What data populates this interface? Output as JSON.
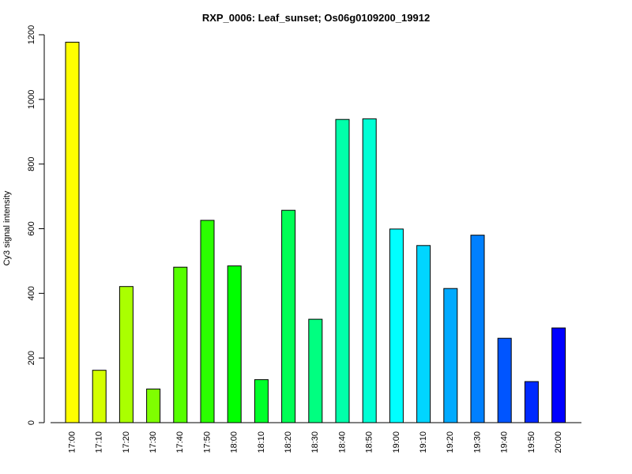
{
  "chart_data": {
    "type": "bar",
    "title": "RXP_0006: Leaf_sunset; Os06g0109200_19912",
    "xlabel": "",
    "ylabel": "Cy3 signal intensity",
    "ylim": [
      0,
      1200
    ],
    "yticks": [
      0,
      200,
      400,
      600,
      800,
      1000,
      1200
    ],
    "grid": false,
    "categories": [
      "17:00",
      "17:10",
      "17:20",
      "17:30",
      "17:40",
      "17:50",
      "18:00",
      "18:10",
      "18:20",
      "18:30",
      "18:40",
      "18:50",
      "19:00",
      "19:10",
      "19:20",
      "19:30",
      "19:40",
      "19:50",
      "20:00"
    ],
    "values": [
      1177,
      162,
      421,
      104,
      481,
      626,
      485,
      133,
      657,
      320,
      938,
      940,
      599,
      548,
      415,
      580,
      261,
      127,
      293
    ],
    "colors": [
      "#FFFF00",
      "#D4FF00",
      "#AAFF00",
      "#7FFF00",
      "#55FF00",
      "#2BFF00",
      "#00FF00",
      "#00FF2A",
      "#00FF55",
      "#00FF80",
      "#00FFAA",
      "#00FFD4",
      "#00FFFF",
      "#00D5FF",
      "#00AAFF",
      "#0080FF",
      "#0055FF",
      "#002AFF",
      "#0000FF"
    ]
  }
}
